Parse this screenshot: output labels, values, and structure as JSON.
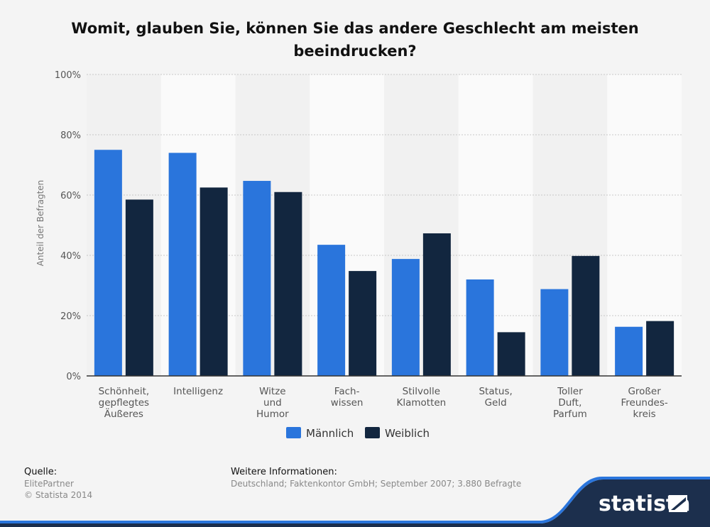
{
  "chart_data": {
    "type": "bar",
    "title": "Womit, glauben Sie, können Sie das andere Geschlecht am meisten beeindrucken?",
    "ylabel": "Anteil der Befragten",
    "ylim": [
      0,
      100
    ],
    "yticks": [
      "0%",
      "20%",
      "40%",
      "60%",
      "80%",
      "100%"
    ],
    "ytick_values": [
      0,
      20,
      40,
      60,
      80,
      100
    ],
    "grid": true,
    "legend_position": "bottom",
    "categories": [
      [
        "Schönheit,",
        "gepflegtes",
        "Äußeres"
      ],
      [
        "Intelligenz"
      ],
      [
        "Witze",
        "und",
        "Humor"
      ],
      [
        "Fach-",
        "wissen"
      ],
      [
        "Stilvolle",
        "Klamotten"
      ],
      [
        "Status,",
        "Geld"
      ],
      [
        "Toller",
        "Duft,",
        "Parfum"
      ],
      [
        "Großer",
        "Freundes-",
        "kreis"
      ]
    ],
    "series": [
      {
        "name": "Männlich",
        "color": "#2a75dc",
        "values": [
          75,
          74,
          64.7,
          43.5,
          38.8,
          32,
          28.8,
          16.3
        ]
      },
      {
        "name": "Weiblich",
        "color": "#12263f",
        "values": [
          58.5,
          62.5,
          61,
          34.8,
          47.3,
          14.5,
          39.8,
          18.2
        ]
      }
    ]
  },
  "footer": {
    "source_heading": "Quelle:",
    "source_lines": [
      "ElitePartner",
      "© Statista 2014"
    ],
    "info_heading": "Weitere Informationen:",
    "info_text": "Deutschland; Faktenkontor GmbH; September 2007; 3.880 Befragte"
  },
  "brand": {
    "name": "statista",
    "color": "#2a75dc"
  }
}
